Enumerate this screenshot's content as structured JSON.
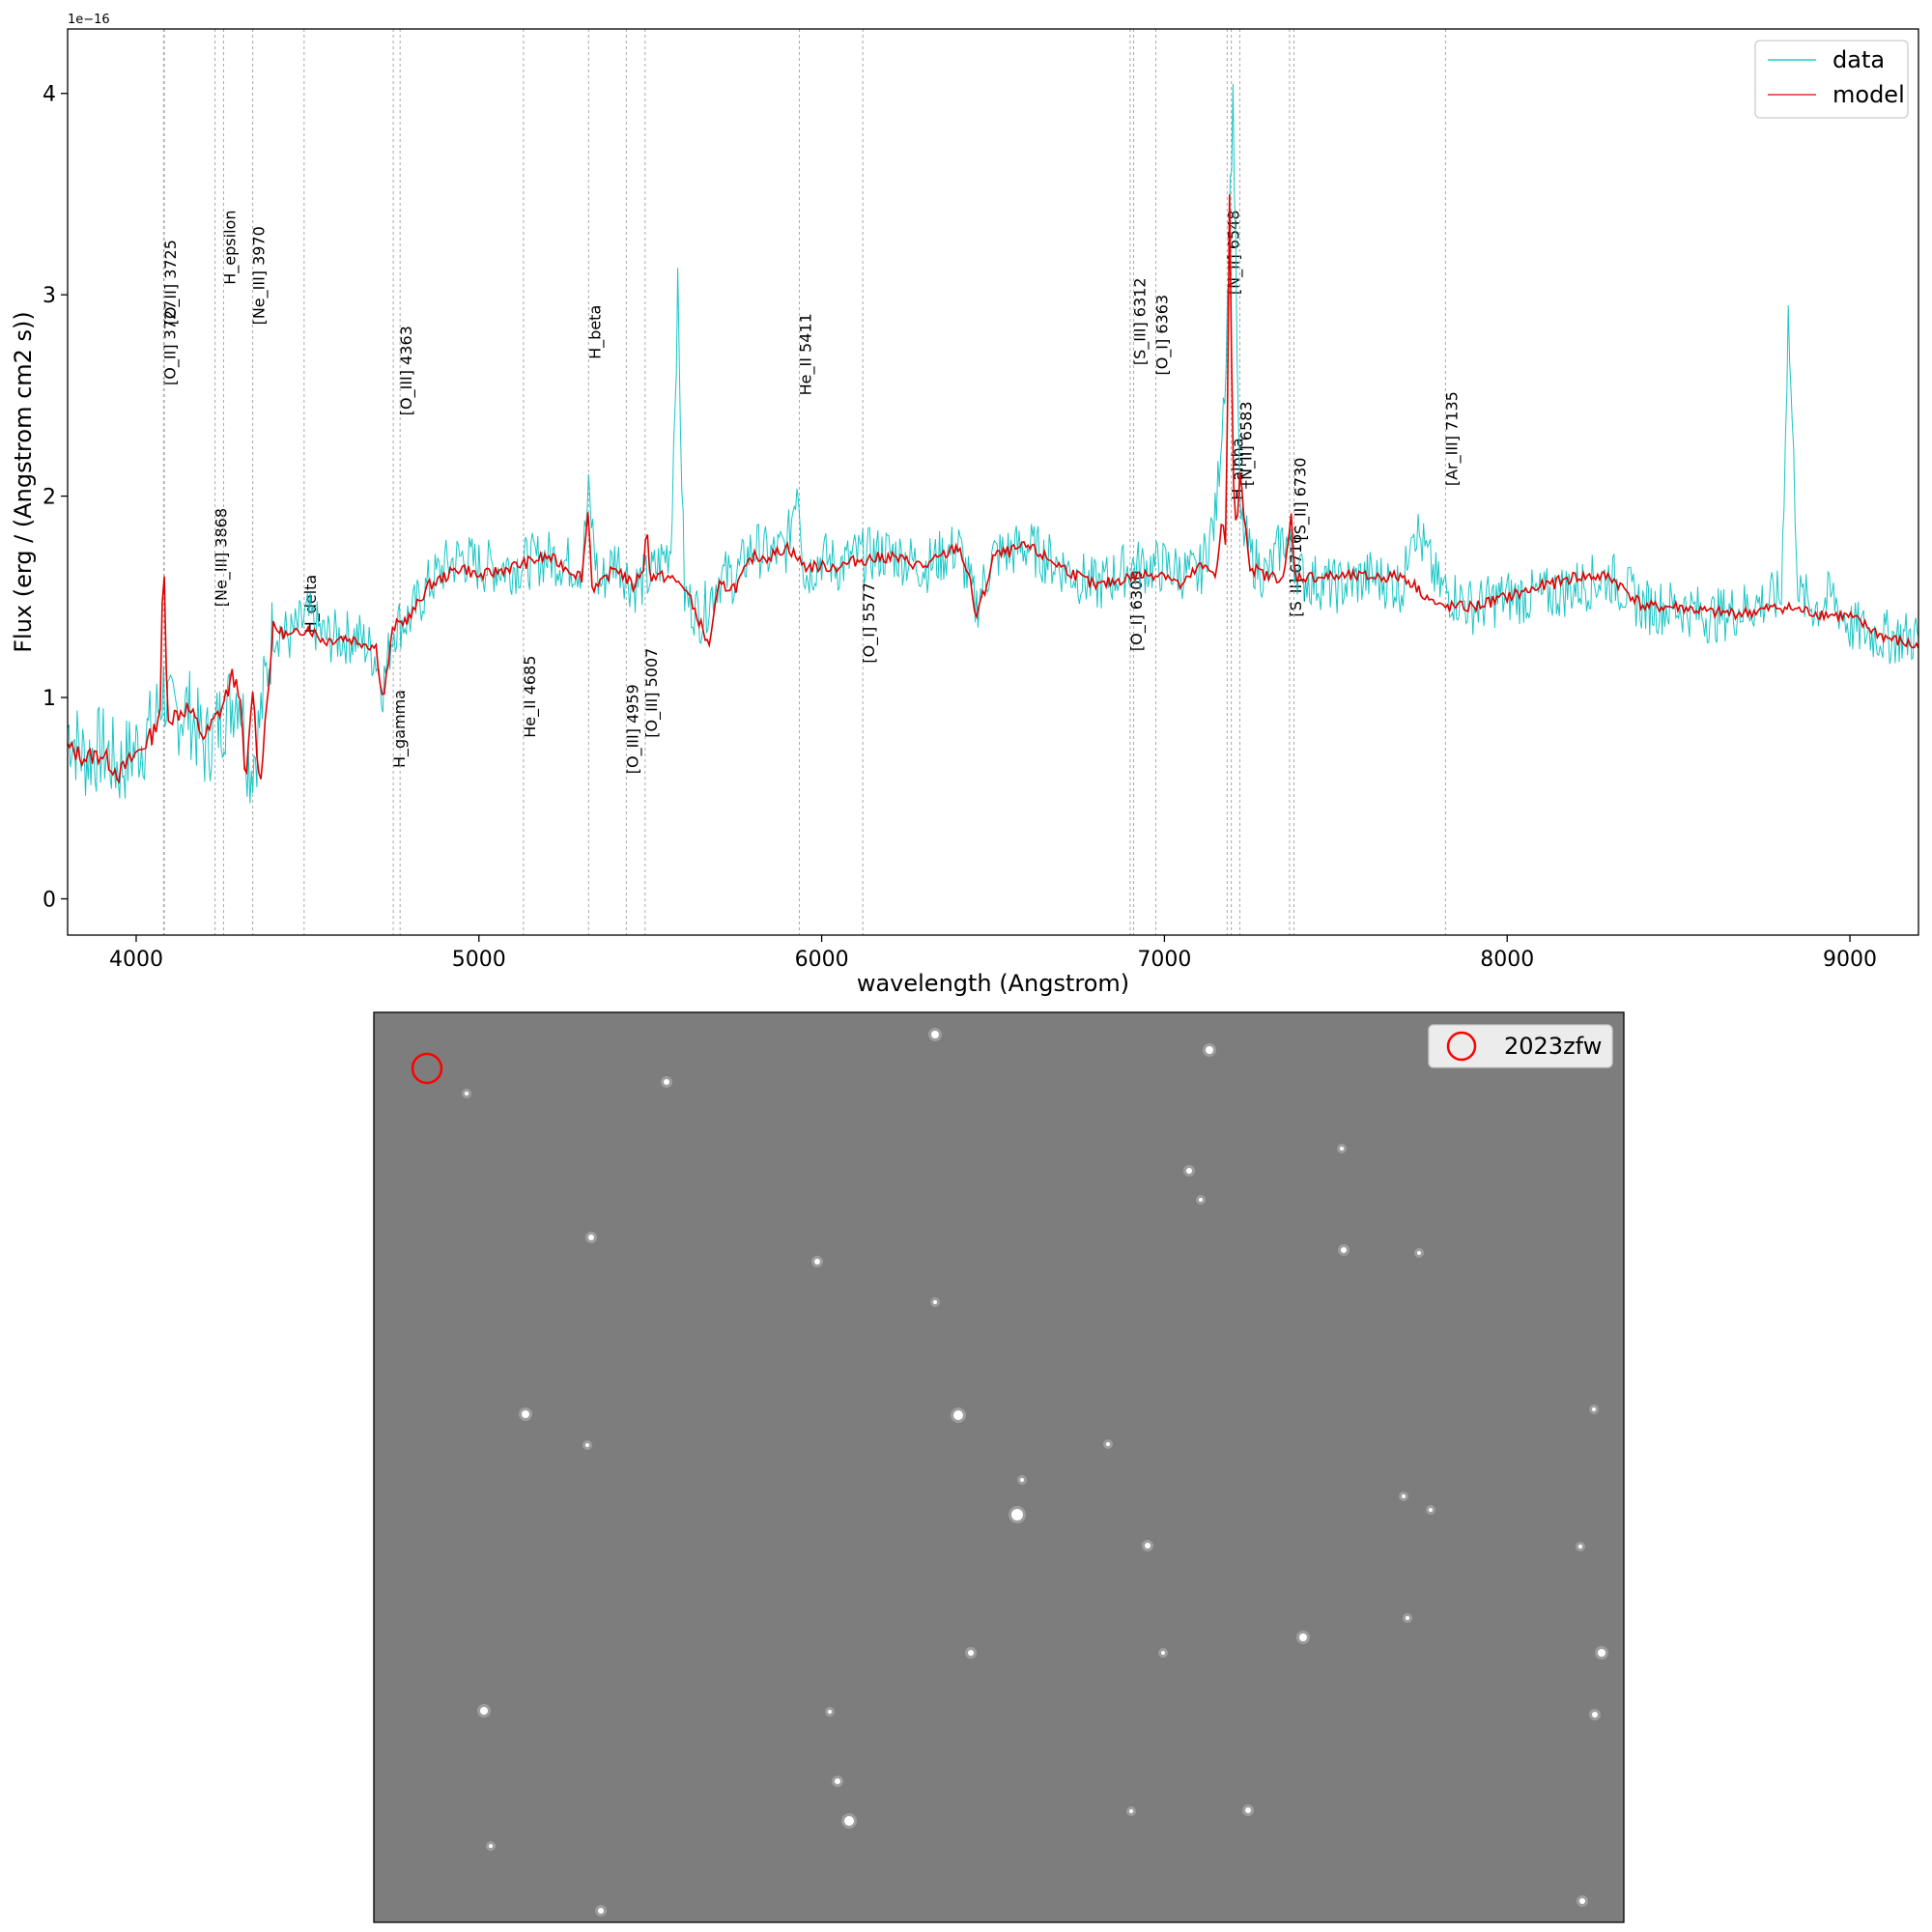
{
  "chart_data": [
    {
      "type": "line",
      "xlabel": "wavelength (Angstrom)",
      "ylabel": "Flux (erg / (Angstrom cm2 s))",
      "y_offset_text": "1e−16",
      "xlim": [
        3800,
        9200
      ],
      "ylim": [
        -0.18,
        4.32
      ],
      "xticks": [
        4000,
        5000,
        6000,
        7000,
        8000,
        9000
      ],
      "yticks": [
        0,
        1,
        2,
        3,
        4
      ],
      "grid": false,
      "legend_position": "top-right",
      "series": [
        {
          "name": "data",
          "color": "#00bfbf",
          "x": [
            3800,
            3850,
            3900,
            3950,
            4000,
            4050,
            4080,
            4100,
            4150,
            4200,
            4250,
            4300,
            4330,
            4350,
            4400,
            4450,
            4500,
            4550,
            4600,
            4650,
            4700,
            4720,
            4750,
            4800,
            4850,
            4900,
            4950,
            5000,
            5100,
            5200,
            5300,
            5320,
            5350,
            5400,
            5450,
            5500,
            5560,
            5580,
            5600,
            5650,
            5700,
            5750,
            5800,
            5850,
            5900,
            5930,
            5950,
            6000,
            6050,
            6100,
            6200,
            6300,
            6400,
            6450,
            6500,
            6600,
            6700,
            6800,
            6900,
            7000,
            7100,
            7150,
            7180,
            7200,
            7220,
            7250,
            7300,
            7350,
            7400,
            7500,
            7600,
            7700,
            7720,
            7800,
            7900,
            8000,
            8100,
            8200,
            8300,
            8400,
            8500,
            8600,
            8700,
            8800,
            8820,
            8850,
            8900,
            8950,
            9000,
            9100,
            9200
          ],
          "y": [
            0.85,
            0.7,
            0.75,
            0.65,
            0.75,
            0.85,
            1.05,
            0.9,
            0.95,
            0.75,
            0.9,
            1.05,
            0.65,
            0.75,
            1.35,
            1.3,
            1.4,
            1.3,
            1.3,
            1.3,
            1.2,
            1.05,
            1.35,
            1.4,
            1.55,
            1.65,
            1.7,
            1.65,
            1.65,
            1.7,
            1.65,
            2.0,
            1.55,
            1.7,
            1.55,
            1.6,
            1.75,
            3.0,
            1.5,
            1.4,
            1.6,
            1.6,
            1.75,
            1.7,
            1.75,
            2.1,
            1.6,
            1.7,
            1.65,
            1.7,
            1.72,
            1.65,
            1.75,
            1.45,
            1.7,
            1.75,
            1.65,
            1.55,
            1.65,
            1.65,
            1.6,
            1.9,
            2.7,
            4.0,
            1.9,
            1.7,
            1.6,
            1.8,
            1.6,
            1.55,
            1.6,
            1.55,
            1.9,
            1.55,
            1.45,
            1.5,
            1.5,
            1.55,
            1.6,
            1.45,
            1.45,
            1.4,
            1.45,
            1.5,
            2.9,
            1.5,
            1.45,
            1.5,
            1.35,
            1.3,
            1.3
          ]
        },
        {
          "name": "model",
          "color": "#e00000",
          "x": [
            3800,
            3850,
            3900,
            3950,
            4000,
            4050,
            4070,
            4080,
            4090,
            4100,
            4150,
            4200,
            4250,
            4280,
            4300,
            4320,
            4340,
            4360,
            4400,
            4450,
            4500,
            4550,
            4600,
            4650,
            4700,
            4720,
            4750,
            4800,
            4850,
            4900,
            4950,
            5000,
            5100,
            5200,
            5300,
            5320,
            5330,
            5350,
            5400,
            5450,
            5480,
            5490,
            5500,
            5550,
            5600,
            5650,
            5670,
            5700,
            5750,
            5800,
            5850,
            5900,
            5950,
            6000,
            6050,
            6100,
            6200,
            6300,
            6400,
            6430,
            6450,
            6480,
            6500,
            6600,
            6700,
            6800,
            6900,
            7000,
            7050,
            7100,
            7150,
            7170,
            7180,
            7190,
            7200,
            7210,
            7220,
            7250,
            7300,
            7350,
            7370,
            7380,
            7400,
            7500,
            7600,
            7700,
            7800,
            7900,
            8000,
            8100,
            8200,
            8300,
            8400,
            8500,
            8600,
            8700,
            8800,
            8900,
            9000,
            9100,
            9200
          ],
          "y": [
            0.75,
            0.7,
            0.72,
            0.62,
            0.72,
            0.82,
            0.95,
            1.75,
            0.95,
            0.9,
            0.95,
            0.8,
            0.95,
            1.1,
            1.05,
            0.55,
            1.05,
            0.55,
            1.35,
            1.3,
            1.35,
            1.28,
            1.3,
            1.28,
            1.25,
            0.98,
            1.35,
            1.4,
            1.55,
            1.6,
            1.65,
            1.6,
            1.65,
            1.7,
            1.6,
            1.95,
            1.55,
            1.55,
            1.65,
            1.55,
            1.65,
            1.85,
            1.6,
            1.6,
            1.55,
            1.35,
            1.25,
            1.55,
            1.55,
            1.7,
            1.7,
            1.75,
            1.65,
            1.65,
            1.65,
            1.68,
            1.7,
            1.65,
            1.75,
            1.6,
            1.4,
            1.55,
            1.7,
            1.75,
            1.65,
            1.55,
            1.6,
            1.62,
            1.55,
            1.65,
            1.62,
            1.9,
            1.7,
            3.5,
            2.1,
            1.8,
            2.1,
            1.65,
            1.6,
            1.6,
            1.9,
            1.6,
            1.6,
            1.6,
            1.6,
            1.6,
            1.45,
            1.45,
            1.5,
            1.55,
            1.6,
            1.6,
            1.45,
            1.45,
            1.42,
            1.42,
            1.45,
            1.42,
            1.4,
            1.3,
            1.25
          ]
        }
      ],
      "lines": [
        {
          "label": "[O_II] 3727",
          "x": 4080,
          "y": 2.55
        },
        {
          "label": "[O_II] 3725",
          "x": 4082,
          "y": 2.85
        },
        {
          "label": "[Ne_III] 3868",
          "x": 4230,
          "y": 1.45
        },
        {
          "label": "H_epsilon",
          "x": 4255,
          "y": 3.05
        },
        {
          "label": "[Ne_III] 3970",
          "x": 4340,
          "y": 2.85
        },
        {
          "label": "H_delta",
          "x": 4490,
          "y": 1.32
        },
        {
          "label": "H_gamma",
          "x": 4750,
          "y": 0.65
        },
        {
          "label": "[O_III] 4363",
          "x": 4770,
          "y": 2.4
        },
        {
          "label": "He_II 4685",
          "x": 5130,
          "y": 0.8
        },
        {
          "label": "H_beta",
          "x": 5320,
          "y": 2.68
        },
        {
          "label": "[O_III] 4959",
          "x": 5430,
          "y": 0.62
        },
        {
          "label": "[O_III] 5007",
          "x": 5485,
          "y": 0.8
        },
        {
          "label": "He_II 5411",
          "x": 5935,
          "y": 2.5
        },
        {
          "label": "[O_I] 5577",
          "x": 6120,
          "y": 1.17
        },
        {
          "label": "[S_III] 6312",
          "x": 6910,
          "y": 2.65
        },
        {
          "label": "[O_I] 6300",
          "x": 6900,
          "y": 1.23
        },
        {
          "label": "[O_I] 6363",
          "x": 6975,
          "y": 2.6
        },
        {
          "label": "[N_II] 6548",
          "x": 7183,
          "y": 3.0
        },
        {
          "label": "H_alpha",
          "x": 7195,
          "y": 1.98
        },
        {
          "label": "[N_II] 6583",
          "x": 7220,
          "y": 2.05
        },
        {
          "label": "[S_II] 6716",
          "x": 7365,
          "y": 1.4
        },
        {
          "label": "[S_II] 6730",
          "x": 7378,
          "y": 1.78
        },
        {
          "label": "[Ar_III] 7135",
          "x": 7820,
          "y": 2.05
        }
      ]
    },
    {
      "type": "image",
      "legend_label": "2023zfw",
      "marker_color": "#ff0000"
    }
  ]
}
